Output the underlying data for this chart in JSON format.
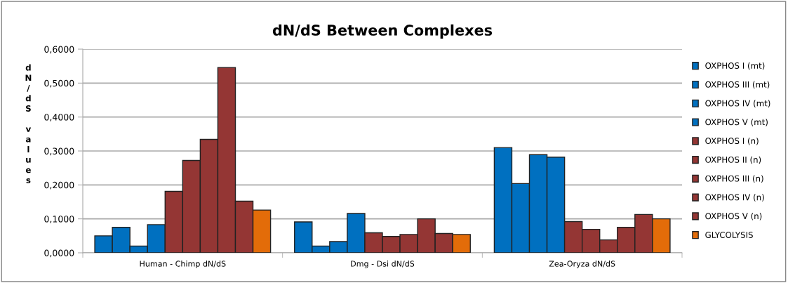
{
  "chart_data": {
    "type": "bar",
    "title": "dN/dS Between Complexes",
    "ylabel": "dN/dS values",
    "categories": [
      "Human - Chimp dN/dS",
      "Dmg - Dsi dN/dS",
      "Zea-Oryza dN/dS"
    ],
    "series": [
      {
        "name": "OXPHOS I (mt)",
        "color": "#0070c0",
        "values": [
          0.05,
          0.091,
          0.31
        ]
      },
      {
        "name": "OXPHOS III (mt)",
        "color": "#0070c0",
        "values": [
          0.075,
          0.02,
          0.204
        ]
      },
      {
        "name": "OXPHOS IV (mt)",
        "color": "#0070c0",
        "values": [
          0.02,
          0.033,
          0.289
        ]
      },
      {
        "name": "OXPHOS V (mt)",
        "color": "#0070c0",
        "values": [
          0.083,
          0.116,
          0.282
        ]
      },
      {
        "name": "OXPHOS I (n)",
        "color": "#943634",
        "values": [
          0.181,
          0.059,
          0.092
        ]
      },
      {
        "name": "OXPHOS II (n)",
        "color": "#943634",
        "values": [
          0.272,
          0.048,
          0.069
        ]
      },
      {
        "name": "OXPHOS III (n)",
        "color": "#943634",
        "values": [
          0.334,
          0.054,
          0.038
        ]
      },
      {
        "name": "OXPHOS IV (n)",
        "color": "#943634",
        "values": [
          0.546,
          0.1,
          0.075
        ]
      },
      {
        "name": "OXPHOS V (n)",
        "color": "#943634",
        "values": [
          0.152,
          0.057,
          0.113
        ]
      },
      {
        "name": "GLYCOLYSIS",
        "color": "#e36c09",
        "values": [
          0.126,
          0.054,
          0.1
        ]
      }
    ],
    "ylim": [
      0,
      0.6
    ],
    "yticks": [
      {
        "value": 0,
        "label": "0,0000"
      },
      {
        "value": 0.1,
        "label": "0,1000"
      },
      {
        "value": 0.2,
        "label": "0,2000"
      },
      {
        "value": 0.3,
        "label": "0,3000"
      },
      {
        "value": 0.4,
        "label": "0,4000"
      },
      {
        "value": 0.5,
        "label": "0,5000"
      },
      {
        "value": 0.6,
        "label": "0,6000"
      }
    ],
    "grid": "y",
    "legend": "right"
  }
}
